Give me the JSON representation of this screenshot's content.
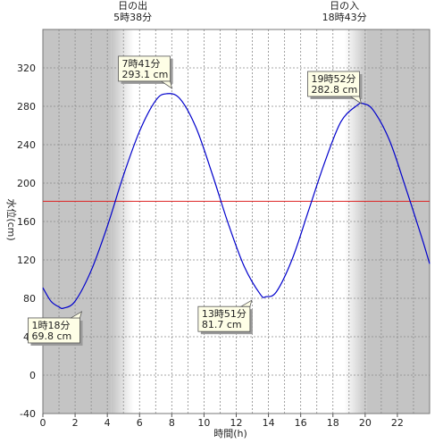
{
  "chart_data": {
    "type": "line",
    "xlabel": "時間(h)",
    "ylabel": "水位(cm)",
    "xlim": [
      0,
      24
    ],
    "ylim": [
      -40,
      360
    ],
    "x_ticks": [
      "0",
      "2",
      "4",
      "6",
      "8",
      "10",
      "12",
      "14",
      "16",
      "18",
      "20",
      "22"
    ],
    "y_ticks": [
      "-40",
      "0",
      "40",
      "80",
      "120",
      "160",
      "200",
      "240",
      "280",
      "320"
    ],
    "grid": true,
    "reference_line": {
      "y": 181,
      "color": "#dd2222"
    },
    "sunrise": {
      "label": "日の出",
      "time_label": "5時38分",
      "hour": 5.633
    },
    "sunset": {
      "label": "日の入",
      "time_label": "18時43分",
      "hour": 18.717
    },
    "series": [
      {
        "color": "#0000cc",
        "x": [
          0,
          0.5,
          1.0,
          1.3,
          2.0,
          3.0,
          4.0,
          5.0,
          6.0,
          7.0,
          7.68,
          8.5,
          9.5,
          10.5,
          11.5,
          12.5,
          13.5,
          13.85,
          14.5,
          15.5,
          16.5,
          17.5,
          18.5,
          19.5,
          19.87,
          20.5,
          21.5,
          22.5,
          23.5,
          24.0
        ],
        "y": [
          91,
          77,
          71,
          69.8,
          77,
          109,
          155,
          208,
          254,
          286,
          293.1,
          288,
          258,
          210,
          158,
          113,
          84,
          81.7,
          87,
          122,
          172,
          222,
          264,
          281,
          282.8,
          276,
          245,
          196,
          144,
          116
        ]
      }
    ],
    "annotations": [
      {
        "time": "7時41分",
        "value": "293.1 cm",
        "x": 7.68,
        "y": 293.1
      },
      {
        "time": "19時52分",
        "value": "282.8 cm",
        "x": 19.87,
        "y": 282.8
      },
      {
        "time": "1時18分",
        "value": "69.8 cm",
        "x": 1.3,
        "y": 69.8
      },
      {
        "time": "13時51分",
        "value": "81.7 cm",
        "x": 13.85,
        "y": 81.7
      }
    ]
  }
}
